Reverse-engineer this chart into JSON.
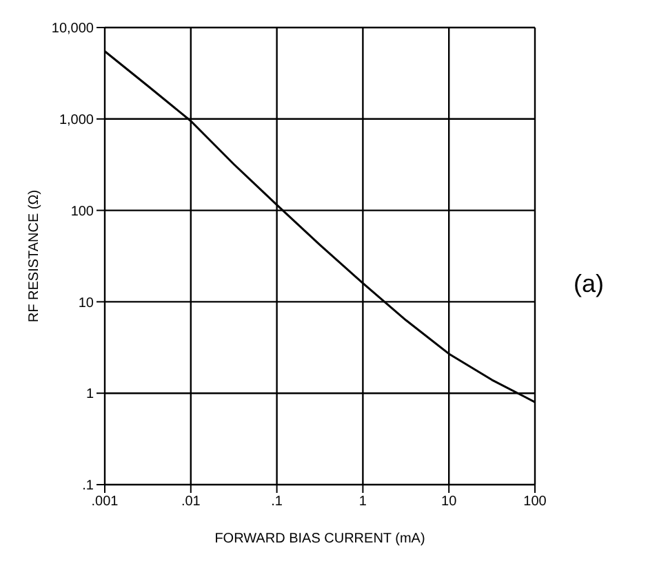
{
  "chart_data": {
    "type": "line",
    "xlabel": "FORWARD BIAS CURRENT (mA)",
    "ylabel": "RF RESISTANCE (Ω)",
    "annotations": [
      "(a)"
    ],
    "x": [
      0.001,
      0.00316,
      0.01,
      0.0316,
      0.1,
      0.316,
      1,
      3.16,
      10,
      31.6,
      100
    ],
    "series": [
      {
        "color": "#000000",
        "values": [
          5500,
          2300,
          950,
          320,
          115,
          42,
          16,
          6.3,
          2.7,
          1.4,
          0.8
        ]
      }
    ],
    "log": "xy",
    "grid": true,
    "legend": false,
    "marker": "none",
    "line_style": "solid",
    "xlim": [
      0.001,
      100
    ],
    "ylim": [
      0.1,
      10000
    ],
    "xticks": [
      {
        "value": 0.001,
        "label": ".001"
      },
      {
        "value": 0.01,
        "label": ".01"
      },
      {
        "value": 0.1,
        "label": ".1"
      },
      1,
      10,
      100
    ],
    "yticks": [
      {
        "value": 0.1,
        "label": ".1"
      },
      1,
      10,
      100,
      {
        "value": 1000,
        "label": "1,000"
      },
      {
        "value": 10000,
        "label": "10,000"
      }
    ]
  }
}
